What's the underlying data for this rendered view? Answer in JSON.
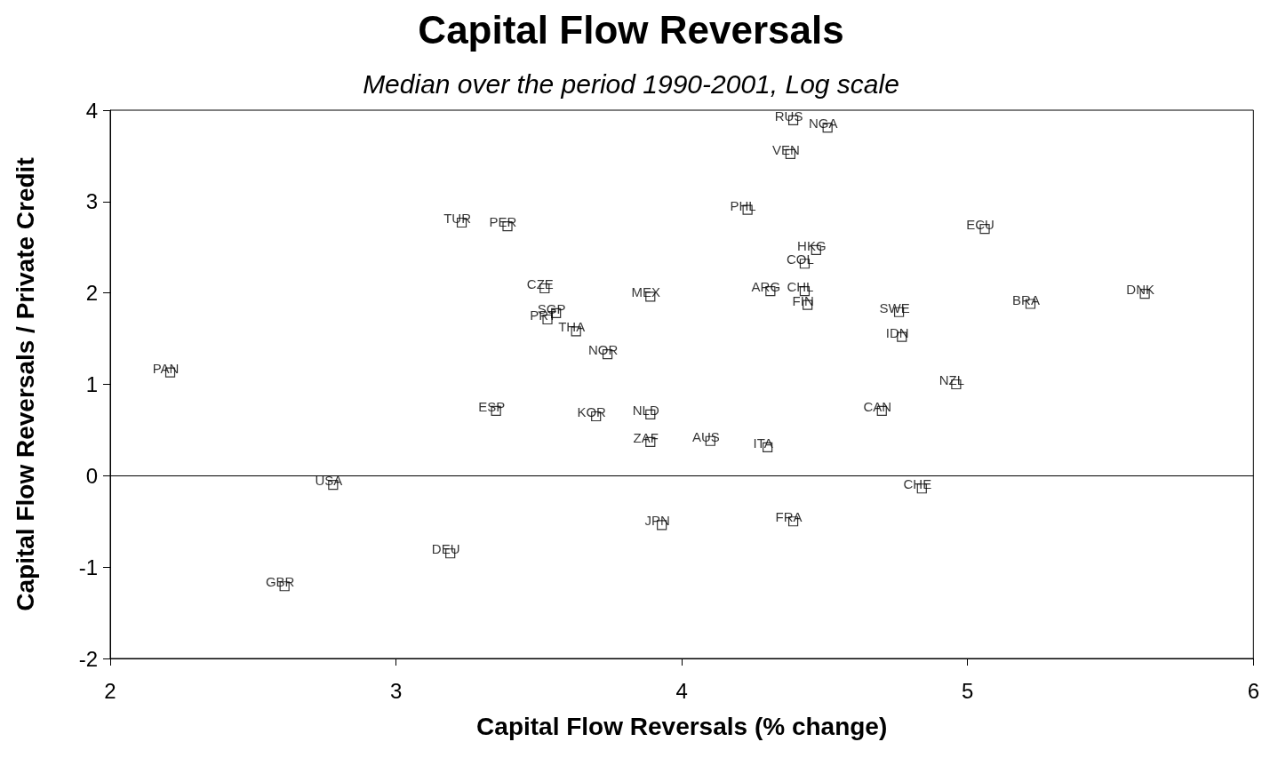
{
  "chart_data": {
    "type": "scatter",
    "title": "Capital Flow Reversals",
    "subtitle": "Median over the period 1990-2001, Log scale",
    "xlabel": "Capital Flow Reversals (% change)",
    "ylabel": "Capital Flow Reversals / Private Credit",
    "x": [
      4.39,
      4.51,
      4.38,
      4.23,
      3.23,
      3.39,
      5.06,
      4.47,
      4.43,
      3.52,
      3.89,
      4.31,
      4.43,
      5.62,
      4.44,
      5.22,
      3.56,
      4.76,
      3.53,
      3.63,
      4.77,
      3.74,
      2.21,
      4.96,
      3.35,
      4.7,
      3.7,
      3.89,
      3.89,
      4.1,
      4.3,
      2.78,
      4.84,
      4.39,
      3.93,
      3.19,
      2.61
    ],
    "values": [
      3.89,
      3.81,
      3.52,
      2.91,
      2.77,
      2.73,
      2.7,
      2.47,
      2.32,
      2.05,
      1.96,
      2.02,
      2.02,
      1.99,
      1.87,
      1.88,
      1.78,
      1.79,
      1.71,
      1.58,
      1.52,
      1.33,
      1.13,
      1.0,
      0.71,
      0.71,
      0.65,
      0.67,
      0.37,
      0.38,
      0.31,
      -0.1,
      -0.14,
      -0.5,
      -0.54,
      -0.85,
      -1.21
    ],
    "color": "#000000",
    "marker": "square",
    "grid": false,
    "xlim": [
      2,
      6
    ],
    "xticks": [
      2,
      3,
      4,
      5,
      6
    ],
    "ylim": [
      -2,
      4
    ],
    "yticks": [
      -2,
      -1,
      0,
      1,
      2,
      3,
      4
    ],
    "ref_lines": [
      {
        "axis": "y",
        "value": 0,
        "color": "#000000"
      }
    ],
    "annotations": [
      {
        "text": "RUS",
        "x": 4.39,
        "y": 3.89
      },
      {
        "text": "NGA",
        "x": 4.51,
        "y": 3.81
      },
      {
        "text": "VEN",
        "x": 4.38,
        "y": 3.52
      },
      {
        "text": "PHL",
        "x": 4.23,
        "y": 2.91
      },
      {
        "text": "TUR",
        "x": 3.23,
        "y": 2.77
      },
      {
        "text": "PER",
        "x": 3.39,
        "y": 2.73
      },
      {
        "text": "ECU",
        "x": 5.06,
        "y": 2.7
      },
      {
        "text": "HKG",
        "x": 4.47,
        "y": 2.47
      },
      {
        "text": "COL",
        "x": 4.43,
        "y": 2.32
      },
      {
        "text": "CZE",
        "x": 3.52,
        "y": 2.05
      },
      {
        "text": "MEX",
        "x": 3.89,
        "y": 1.96
      },
      {
        "text": "ARG",
        "x": 4.31,
        "y": 2.02
      },
      {
        "text": "CHL",
        "x": 4.43,
        "y": 2.02
      },
      {
        "text": "DNK",
        "x": 5.62,
        "y": 1.99
      },
      {
        "text": "FIN",
        "x": 4.44,
        "y": 1.87
      },
      {
        "text": "BRA",
        "x": 5.22,
        "y": 1.88
      },
      {
        "text": "SGP",
        "x": 3.56,
        "y": 1.78
      },
      {
        "text": "SWE",
        "x": 4.76,
        "y": 1.79
      },
      {
        "text": "PRT",
        "x": 3.53,
        "y": 1.71
      },
      {
        "text": "THA",
        "x": 3.63,
        "y": 1.58
      },
      {
        "text": "IDN",
        "x": 4.77,
        "y": 1.52
      },
      {
        "text": "NOR",
        "x": 3.74,
        "y": 1.33
      },
      {
        "text": "PAN",
        "x": 2.21,
        "y": 1.13
      },
      {
        "text": "NZL",
        "x": 4.96,
        "y": 1.0
      },
      {
        "text": "ESP",
        "x": 3.35,
        "y": 0.71
      },
      {
        "text": "CAN",
        "x": 4.7,
        "y": 0.71
      },
      {
        "text": "KOR",
        "x": 3.7,
        "y": 0.65
      },
      {
        "text": "NLD",
        "x": 3.89,
        "y": 0.67
      },
      {
        "text": "ZAF",
        "x": 3.89,
        "y": 0.37
      },
      {
        "text": "AUS",
        "x": 4.1,
        "y": 0.38
      },
      {
        "text": "ITA",
        "x": 4.3,
        "y": 0.31
      },
      {
        "text": "USA",
        "x": 2.78,
        "y": -0.1
      },
      {
        "text": "CHE",
        "x": 4.84,
        "y": -0.14
      },
      {
        "text": "FRA",
        "x": 4.39,
        "y": -0.5
      },
      {
        "text": "JPN",
        "x": 3.93,
        "y": -0.54
      },
      {
        "text": "DEU",
        "x": 3.19,
        "y": -0.85
      },
      {
        "text": "GBR",
        "x": 2.61,
        "y": -1.21
      }
    ]
  }
}
